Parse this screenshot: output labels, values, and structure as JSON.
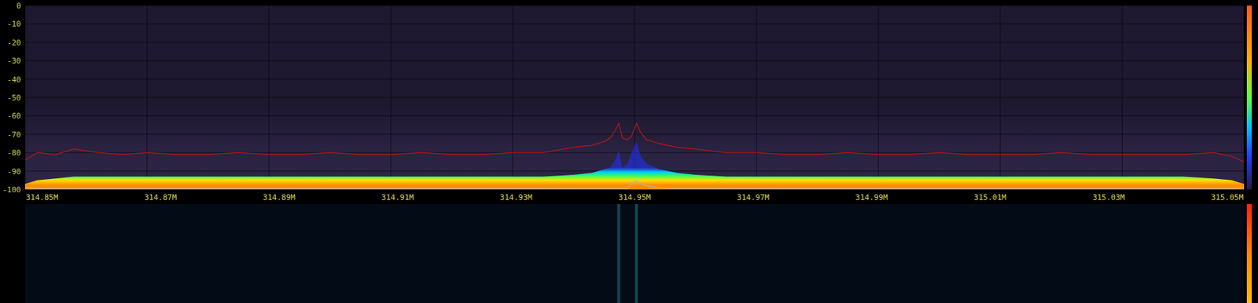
{
  "chart_data": {
    "type": "line",
    "xlim": [
      314.85,
      315.05
    ],
    "ylim": [
      -100,
      0
    ],
    "xticks": [
      {
        "value": 314.85,
        "label": "314.85M"
      },
      {
        "value": 314.87,
        "label": "314.87M"
      },
      {
        "value": 314.89,
        "label": "314.89M"
      },
      {
        "value": 314.91,
        "label": "314.91M"
      },
      {
        "value": 314.93,
        "label": "314.93M"
      },
      {
        "value": 314.95,
        "label": "314.95M"
      },
      {
        "value": 314.97,
        "label": "314.97M"
      },
      {
        "value": 314.99,
        "label": "314.99M"
      },
      {
        "value": 315.01,
        "label": "315.01M"
      },
      {
        "value": 315.03,
        "label": "315.03M"
      },
      {
        "value": 315.05,
        "label": "315.05M"
      }
    ],
    "yticks": [
      0,
      -10,
      -20,
      -30,
      -40,
      -50,
      -60,
      -70,
      -80,
      -90,
      -100
    ],
    "grid": true,
    "x": [
      314.85,
      314.852,
      314.855,
      314.858,
      314.862,
      314.866,
      314.87,
      314.875,
      314.88,
      314.885,
      314.89,
      314.895,
      314.9,
      314.905,
      314.91,
      314.915,
      314.92,
      314.925,
      314.93,
      314.935,
      314.94,
      314.943,
      314.945,
      314.946,
      314.9468,
      314.9474,
      314.948,
      314.9488,
      314.9495,
      314.9503,
      314.951,
      314.952,
      314.954,
      314.957,
      314.96,
      314.965,
      314.97,
      314.975,
      314.98,
      314.985,
      314.99,
      314.995,
      315.0,
      315.005,
      315.01,
      315.015,
      315.02,
      315.025,
      315.03,
      315.035,
      315.04,
      315.045,
      315.048,
      315.05
    ],
    "series": [
      {
        "type": "area",
        "color": "#ff8c00",
        "values": [
          -97,
          -95,
          -94,
          -93,
          -93,
          -93,
          -93,
          -93,
          -93,
          -93,
          -93,
          -93,
          -93,
          -93,
          -93,
          -93,
          -93,
          -93,
          -93,
          -93,
          -92,
          -91,
          -89,
          -88,
          -84,
          -79,
          -88,
          -86,
          -80,
          -74,
          -82,
          -86,
          -89,
          -91,
          -92,
          -93,
          -93,
          -93,
          -93,
          -93,
          -93,
          -93,
          -93,
          -93,
          -93,
          -93,
          -93,
          -93,
          -93,
          -93,
          -93,
          -94,
          -95,
          -97
        ]
      },
      {
        "type": "line",
        "color": "#b01818",
        "values": [
          -84,
          -80,
          -81,
          -78,
          -80,
          -81,
          -80,
          -81,
          -81,
          -80,
          -81,
          -81,
          -80,
          -81,
          -81,
          -80,
          -81,
          -81,
          -80,
          -80,
          -77,
          -76,
          -74,
          -72,
          -68,
          -64,
          -72,
          -73,
          -71,
          -64,
          -69,
          -73,
          -75,
          -77,
          -78,
          -80,
          -80,
          -81,
          -81,
          -80,
          -81,
          -81,
          -80,
          -81,
          -81,
          -81,
          -80,
          -81,
          -81,
          -81,
          -81,
          -80,
          -82,
          -85
        ]
      },
      {
        "type": "line",
        "color": "#b4b4b4",
        "values": [
          -99,
          -99.5,
          -99.5,
          -99.5,
          -99.5,
          -99.5,
          -99.5,
          -99.5,
          -99.5,
          -99.5,
          -99.5,
          -99.5,
          -99.5,
          -99.5,
          -99.5,
          -99.5,
          -99.5,
          -99.5,
          -99.5,
          -99.5,
          -99.5,
          -99.5,
          -99.5,
          -99.5,
          -99.5,
          -99.5,
          -99.5,
          -99.5,
          -97,
          -95,
          -97,
          -98,
          -99,
          -99.5,
          -99.5,
          -99.5,
          -99.5,
          -99.5,
          -99.5,
          -99.5,
          -99.5,
          -99.5,
          -99.5,
          -99.5,
          -99.5,
          -99.5,
          -99.5,
          -99.5,
          -99.5,
          -99.5,
          -99.5,
          -99.5,
          -99.5,
          -99
        ]
      }
    ],
    "waterfall_signals": [
      314.9474,
      314.9503
    ]
  }
}
